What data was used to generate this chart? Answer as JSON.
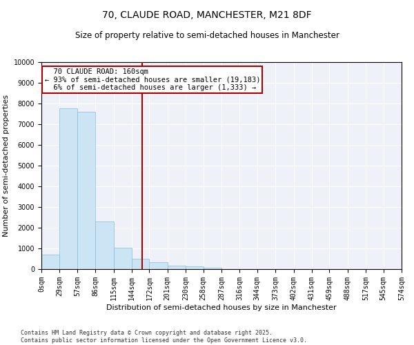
{
  "title": "70, CLAUDE ROAD, MANCHESTER, M21 8DF",
  "subtitle": "Size of property relative to semi-detached houses in Manchester",
  "xlabel": "Distribution of semi-detached houses by size in Manchester",
  "ylabel": "Number of semi-detached properties",
  "footer": "Contains HM Land Registry data © Crown copyright and database right 2025.\nContains public sector information licensed under the Open Government Licence v3.0.",
  "property_size": 160,
  "property_label": "70 CLAUDE ROAD: 160sqm",
  "pct_smaller": 93,
  "pct_larger": 6,
  "n_smaller": "19,183",
  "n_larger": "1,333",
  "bar_color": "#cce5f5",
  "bar_edge_color": "#88bbdd",
  "marker_line_color": "#aa0000",
  "annotation_box_color": "#aa0000",
  "background_color": "#eef2f8",
  "bins": [
    0,
    29,
    57,
    86,
    115,
    144,
    172,
    201,
    230,
    258,
    287,
    316,
    344,
    373,
    402,
    431,
    459,
    488,
    517,
    545,
    574
  ],
  "counts": [
    700,
    7750,
    7600,
    2300,
    1050,
    500,
    350,
    175,
    130,
    60,
    0,
    0,
    0,
    0,
    0,
    0,
    0,
    0,
    0,
    0
  ],
  "ylim": [
    0,
    10000
  ],
  "yticks": [
    0,
    1000,
    2000,
    3000,
    4000,
    5000,
    6000,
    7000,
    8000,
    9000,
    10000
  ],
  "title_fontsize": 10,
  "subtitle_fontsize": 8.5,
  "axis_label_fontsize": 8,
  "tick_fontsize": 7,
  "annotation_fontsize": 7.5,
  "footer_fontsize": 6
}
